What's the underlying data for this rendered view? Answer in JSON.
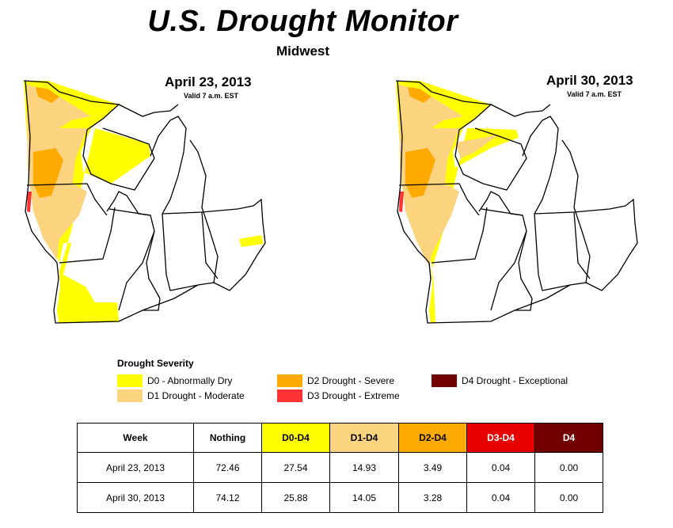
{
  "title": "U.S. Drought Monitor",
  "subtitle": "Midwest",
  "maps": [
    {
      "date": "April 23, 2013",
      "valid": "Valid 7 a.m. EST"
    },
    {
      "date": "April 30, 2013",
      "valid": "Valid 7 a.m. EST"
    }
  ],
  "legend": {
    "title": "Drought Severity",
    "items": [
      {
        "label": "D0 - Abnormally Dry",
        "color": "#ffff00"
      },
      {
        "label": "D1 Drought - Moderate",
        "color": "#fcd37f"
      },
      {
        "label": "D2 Drought - Severe",
        "color": "#ffaa00"
      },
      {
        "label": "D3 Drought - Extreme",
        "color": "#ff3333"
      },
      {
        "label": "D4 Drought - Exceptional",
        "color": "#730000"
      }
    ]
  },
  "table": {
    "headers": [
      "Week",
      "Nothing",
      "D0-D4",
      "D1-D4",
      "D2-D4",
      "D3-D4",
      "D4"
    ],
    "header_colors": [
      "#ffffff",
      "#ffffff",
      "#ffff00",
      "#fcd37f",
      "#ffaa00",
      "#e60000",
      "#730000"
    ],
    "rows": [
      [
        "April 23, 2013",
        "72.46",
        "27.54",
        "14.93",
        "3.49",
        "0.04",
        "0.00"
      ],
      [
        "April 30, 2013",
        "74.12",
        "25.88",
        "14.05",
        "3.28",
        "0.04",
        "0.00"
      ]
    ]
  }
}
